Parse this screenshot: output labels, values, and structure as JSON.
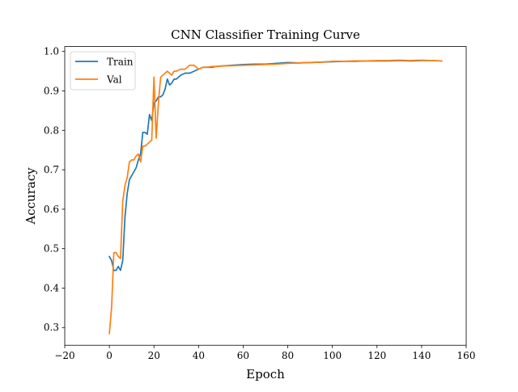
{
  "chart_data": {
    "type": "line",
    "title": "CNN Classifier Training Curve",
    "xlabel": "Epoch",
    "ylabel": "Accuracy",
    "xlim": [
      -20,
      160
    ],
    "ylim": [
      0.255,
      1.0125
    ],
    "xticks": [
      -20,
      0,
      20,
      40,
      60,
      80,
      100,
      120,
      140,
      160
    ],
    "xtick_labels": [
      "−20",
      "0",
      "20",
      "40",
      "60",
      "80",
      "100",
      "120",
      "140",
      "160"
    ],
    "yticks": [
      0.3,
      0.4,
      0.5,
      0.6,
      0.7,
      0.8,
      0.9,
      1.0
    ],
    "ytick_labels": [
      "0.3",
      "0.4",
      "0.5",
      "0.6",
      "0.7",
      "0.8",
      "0.9",
      "1.0"
    ],
    "grid": false,
    "legend_position": "top-left",
    "series": [
      {
        "name": "Train",
        "color": "#1f77b4",
        "x": [
          0,
          1,
          2,
          3,
          4,
          5,
          6,
          7,
          8,
          9,
          10,
          11,
          12,
          13,
          14,
          15,
          16,
          17,
          18,
          19,
          20,
          21,
          22,
          23,
          24,
          25,
          26,
          27,
          28,
          29,
          30,
          32,
          34,
          36,
          38,
          40,
          42,
          44,
          46,
          48,
          50,
          55,
          60,
          65,
          70,
          75,
          80,
          85,
          90,
          95,
          100,
          105,
          110,
          115,
          120,
          125,
          130,
          135,
          140,
          145,
          149
        ],
        "y": [
          0.48,
          0.47,
          0.445,
          0.445,
          0.455,
          0.445,
          0.47,
          0.58,
          0.64,
          0.675,
          0.685,
          0.695,
          0.705,
          0.725,
          0.74,
          0.795,
          0.795,
          0.79,
          0.84,
          0.825,
          0.87,
          0.875,
          0.885,
          0.885,
          0.89,
          0.905,
          0.93,
          0.915,
          0.92,
          0.93,
          0.93,
          0.94,
          0.945,
          0.945,
          0.95,
          0.955,
          0.96,
          0.96,
          0.96,
          0.962,
          0.963,
          0.965,
          0.967,
          0.968,
          0.968,
          0.97,
          0.972,
          0.971,
          0.972,
          0.973,
          0.974,
          0.975,
          0.975,
          0.976,
          0.976,
          0.976,
          0.977,
          0.976,
          0.977,
          0.977,
          0.976
        ]
      },
      {
        "name": "Val",
        "color": "#ff7f0e",
        "x": [
          0,
          1,
          2,
          3,
          4,
          5,
          6,
          7,
          8,
          9,
          10,
          11,
          12,
          13,
          14,
          15,
          16,
          17,
          18,
          19,
          20,
          21,
          22,
          23,
          24,
          25,
          26,
          27,
          28,
          29,
          30,
          32,
          34,
          36,
          38,
          40,
          42,
          44,
          46,
          48,
          50,
          55,
          60,
          65,
          70,
          75,
          80,
          85,
          90,
          95,
          100,
          105,
          110,
          115,
          120,
          125,
          130,
          135,
          140,
          145,
          149
        ],
        "y": [
          0.285,
          0.35,
          0.49,
          0.49,
          0.48,
          0.475,
          0.62,
          0.66,
          0.68,
          0.72,
          0.725,
          0.725,
          0.735,
          0.74,
          0.72,
          0.76,
          0.76,
          0.765,
          0.77,
          0.775,
          0.935,
          0.78,
          0.87,
          0.935,
          0.94,
          0.945,
          0.95,
          0.945,
          0.94,
          0.95,
          0.95,
          0.955,
          0.955,
          0.965,
          0.965,
          0.955,
          0.96,
          0.96,
          0.962,
          0.962,
          0.963,
          0.964,
          0.965,
          0.966,
          0.967,
          0.968,
          0.97,
          0.971,
          0.972,
          0.973,
          0.975,
          0.975,
          0.976,
          0.976,
          0.977,
          0.977,
          0.978,
          0.977,
          0.978,
          0.977,
          0.976
        ]
      }
    ]
  }
}
